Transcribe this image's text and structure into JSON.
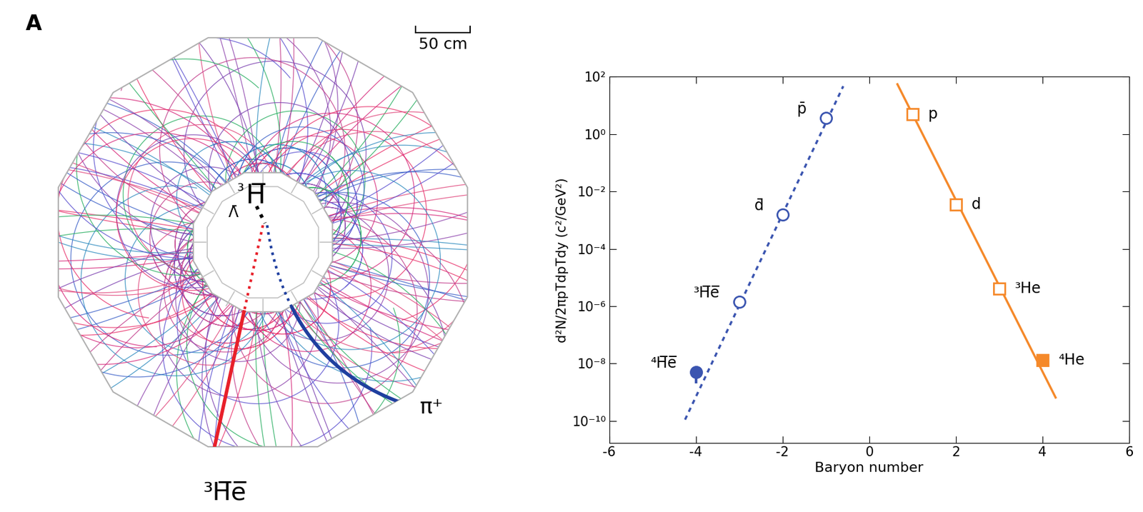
{
  "panel_label": "A",
  "event_display": {
    "scale_bar": "50 cm",
    "parent": {
      "mass_number": "³",
      "symbol": "H̅",
      "subscript": "Λ̄"
    },
    "daughters": [
      {
        "label": "³H̅e̅",
        "color": "#e8202a"
      },
      {
        "label": "π⁺",
        "color": "#1f3f9f"
      }
    ]
  },
  "chart_data": {
    "type": "scatter",
    "xlabel": "Baryon number",
    "ylabel": "d²N/2πpTdpTdy (c²/GeV²)",
    "log": "y",
    "xlim": [
      -6,
      6
    ],
    "xticks": [
      -6,
      -4,
      -2,
      0,
      2,
      4,
      6
    ],
    "ylim": [
      1.7e-11,
      100
    ],
    "yticks": [
      {
        "value": 1e-10,
        "label": "10⁻¹⁰"
      },
      {
        "value": 1e-08,
        "label": "10⁻⁸"
      },
      {
        "value": 1e-06,
        "label": "10⁻⁶"
      },
      {
        "value": 0.0001,
        "label": "10⁻⁴"
      },
      {
        "value": 0.01,
        "label": "10⁻²"
      },
      {
        "value": 1,
        "label": "10⁰"
      },
      {
        "value": 100,
        "label": "10²"
      }
    ],
    "series": [
      {
        "type": "scatter",
        "color": "#3b55b0",
        "marker": "open_circle",
        "x": [
          -1,
          -2,
          -3
        ],
        "values": [
          3.7,
          0.0016,
          1.4e-06
        ],
        "point_labels": [
          "p̄",
          "d̄",
          "³H̅e̅"
        ]
      },
      {
        "type": "scatter",
        "color": "#3b55b0",
        "marker": "filled_circle",
        "x": [
          -4
        ],
        "values": [
          5e-09
        ],
        "error_low": [
          3e-09
        ],
        "point_labels": [
          "⁴H̅e̅"
        ]
      },
      {
        "type": "scatter",
        "color": "#f5892a",
        "marker": "open_square",
        "x": [
          1,
          2,
          3
        ],
        "values": [
          4.9,
          0.0035,
          4e-06
        ],
        "point_labels": [
          "p",
          "d",
          "³He"
        ]
      },
      {
        "type": "scatter",
        "color": "#f5892a",
        "marker": "filled_square",
        "x": [
          4
        ],
        "values": [
          1.3e-08
        ],
        "point_labels": [
          "⁴He"
        ]
      },
      {
        "type": "line",
        "color": "#3b55b0",
        "line_style": "dashed",
        "x": [
          -4.25,
          -0.6
        ],
        "values": [
          1.1e-10,
          47
        ]
      },
      {
        "type": "line",
        "color": "#f5892a",
        "line_style": "solid",
        "x": [
          0.65,
          4.3
        ],
        "values": [
          55,
          6.5e-10
        ]
      }
    ]
  }
}
